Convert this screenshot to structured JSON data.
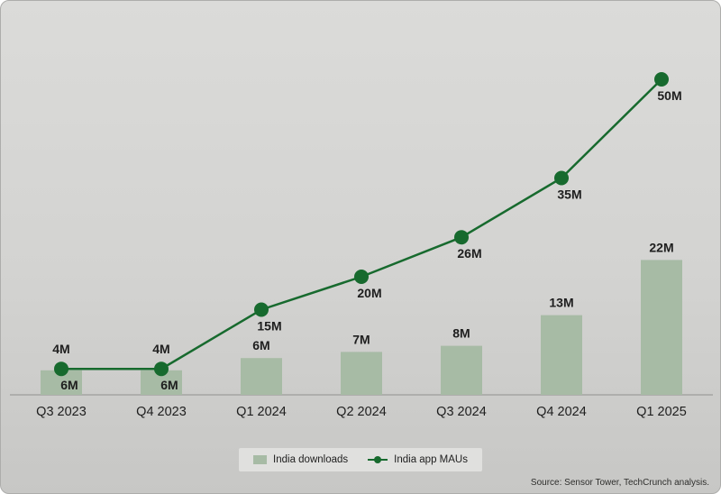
{
  "chart_data": {
    "type": "combo",
    "categories": [
      "Q3 2023",
      "Q4 2023",
      "Q1 2024",
      "Q2 2024",
      "Q3 2024",
      "Q4 2024",
      "Q1 2025"
    ],
    "series": [
      {
        "name": "India downloads",
        "type": "bar",
        "values": [
          4,
          4,
          6,
          7,
          8,
          13,
          22
        ],
        "labels": [
          "4M",
          "4M",
          "6M",
          "7M",
          "8M",
          "13M",
          "22M"
        ],
        "color": "#a7bba5"
      },
      {
        "name": "India app MAUs",
        "type": "line",
        "values": [
          6,
          6,
          15,
          20,
          26,
          35,
          50
        ],
        "labels": [
          "6M",
          "6M",
          "15M",
          "20M",
          "26M",
          "35M",
          "50M"
        ],
        "color": "#176a2e"
      }
    ],
    "title": "",
    "xlabel": "",
    "ylabel": "",
    "ylim": [
      0,
      55
    ],
    "grid": false,
    "legend_position": "bottom"
  },
  "source": "Source: Sensor Tower, TechCrunch analysis.",
  "colors": {
    "background": "#d3d3d1",
    "bar": "#a7bba5",
    "line": "#176a2e",
    "axis": "#90908e",
    "label": "#1e1e1e",
    "legend_bg": "#e0e0de"
  }
}
